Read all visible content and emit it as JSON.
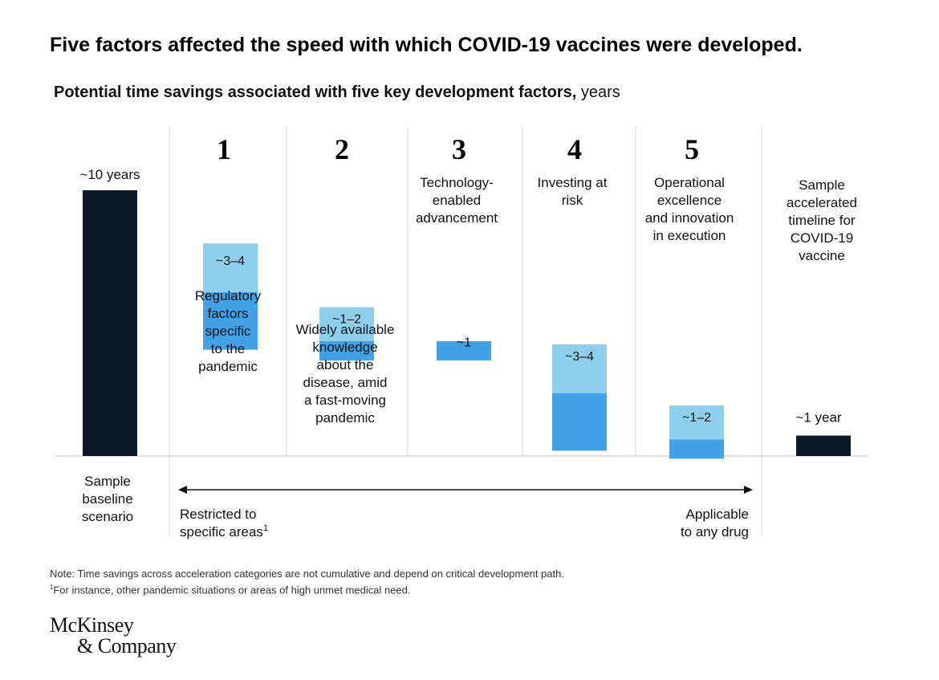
{
  "chart_data": {
    "type": "waterfall",
    "title": "Five factors affected the speed with which COVID-19 vaccines were developed.",
    "subtitle_bold": "Potential time savings associated with five key development factors,",
    "subtitle_unit": "years",
    "ylim": [
      0,
      10
    ],
    "baseline": {
      "value": 10,
      "label": "~10 years",
      "category": [
        "Sample",
        "baseline",
        "scenario"
      ]
    },
    "factors": [
      {
        "number": "1",
        "header": [],
        "label": "~3–4",
        "range_low": 3,
        "range_high": 4,
        "top": 8,
        "description": [
          "Regulatory",
          "factors",
          "specific",
          "to the",
          "pandemic"
        ]
      },
      {
        "number": "2",
        "header": [],
        "label": "~1–2",
        "range_low": 1,
        "range_high": 2,
        "top": 5.6,
        "description": [
          "Widely available",
          "knowledge",
          "about the",
          "disease, amid",
          "a fast-moving",
          "pandemic"
        ]
      },
      {
        "number": "3",
        "header": [
          "Technology-",
          "enabled",
          "advancement"
        ],
        "label": "~1",
        "range_low": 1,
        "range_high": 1,
        "top": 4.6,
        "description": []
      },
      {
        "number": "4",
        "header": [
          "Investing at",
          "risk"
        ],
        "label": "~3–4",
        "range_low": 3,
        "range_high": 4,
        "top": 4.2,
        "description": []
      },
      {
        "number": "5",
        "header": [
          "Operational",
          "excellence",
          "and innovation",
          "in execution"
        ],
        "label": "~1–2",
        "range_low": 1,
        "range_high": 2,
        "top": 1.9,
        "description": []
      }
    ],
    "final": {
      "value": 0.8,
      "label": "~1 year",
      "header": [
        "Sample",
        "accelerated",
        "timeline for",
        "COVID-19",
        "vaccine"
      ]
    },
    "arrow": {
      "left_label": [
        "Restricted to",
        "specific areas"
      ],
      "left_label_sup": "1",
      "right_label": [
        "Applicable",
        "to any drug"
      ]
    },
    "colors": {
      "dark": "#0c1b2a",
      "light_blue": "#8fcfee",
      "mid_blue": "#43a1e6",
      "grid": "#cfd3d6"
    }
  },
  "notes": {
    "note": "Note: Time savings across acceleration categories are not cumulative and depend on critical development path.",
    "footnote_sup": "1",
    "footnote": "For instance, other pandemic situations or areas of high unmet medical need."
  },
  "logo": {
    "line1": "McKinsey",
    "line2": "& Company"
  }
}
